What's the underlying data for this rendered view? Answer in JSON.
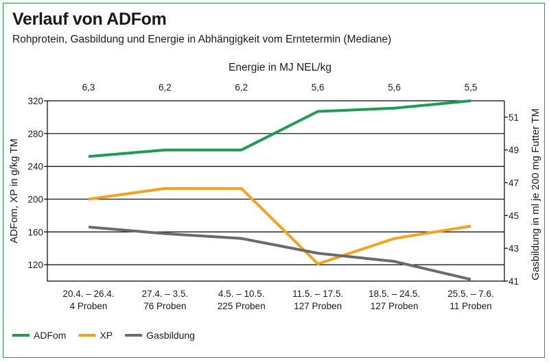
{
  "title": "Verlauf von ADFom",
  "subtitle": "Rohprotein, Gasbildung und Energie in Abhängigkeit vom Erntetermin (Mediane)",
  "colors": {
    "frame": "#2e9a52",
    "adfom": "#1e9c55",
    "xp": "#f5a31c",
    "gas": "#6b6b6b",
    "grid": "#000000"
  },
  "chart_data": {
    "type": "line",
    "title": "Verlauf von ADFom",
    "subtitle": "Rohprotein, Gasbildung und Energie in Abhängigkeit vom Erntetermin (Mediane)",
    "categories": [
      {
        "line1": "20.4. – 26.4.",
        "line2": "4 Proben"
      },
      {
        "line1": "27.4. – 3.5.",
        "line2": "76 Proben"
      },
      {
        "line1": "4.5. – 10.5.",
        "line2": "225 Proben"
      },
      {
        "line1": "11.5. – 17.5.",
        "line2": "127 Proben"
      },
      {
        "line1": "18.5. – 24.5.",
        "line2": "127 Proben"
      },
      {
        "line1": "25.5. – 7.6.",
        "line2": "11 Proben"
      }
    ],
    "top_axis": {
      "label": "Energie in MJ NEL/kg",
      "values": [
        "6,3",
        "6,2",
        "6,2",
        "5,6",
        "5,6",
        "5,5"
      ]
    },
    "y_left": {
      "label": "ADFom, XP in g/kg TM",
      "ylim": [
        100,
        320
      ],
      "ticks": [
        120,
        160,
        200,
        240,
        280,
        320
      ]
    },
    "y_right": {
      "label": "Gasbildung in ml je 200 mg Futter TM",
      "ylim": [
        41,
        52
      ],
      "ticks": [
        41,
        43,
        45,
        47,
        49,
        51
      ]
    },
    "series": [
      {
        "name": "ADFom",
        "axis": "left",
        "color": "#1e9c55",
        "values": [
          252,
          260,
          260,
          307,
          311,
          320
        ]
      },
      {
        "name": "XP",
        "axis": "left",
        "color": "#f5a31c",
        "values": [
          200,
          213,
          213,
          121,
          152,
          167
        ]
      },
      {
        "name": "Gasbildung",
        "axis": "right",
        "color": "#6b6b6b",
        "values": [
          44.3,
          43.9,
          43.6,
          42.7,
          42.2,
          41.1
        ]
      }
    ],
    "grid": true,
    "legend": "bottom-left"
  }
}
